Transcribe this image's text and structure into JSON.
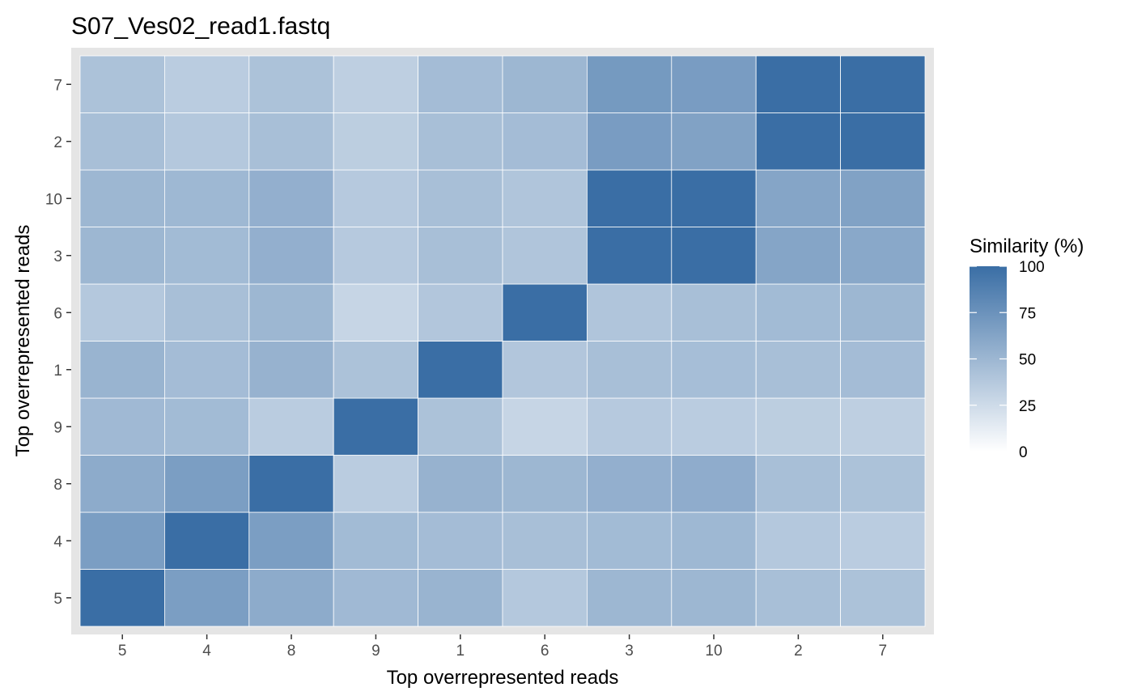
{
  "chart_data": {
    "type": "heatmap",
    "title": "S07_Ves02_read1.fastq",
    "xlabel": "Top overrepresented reads",
    "ylabel": "Top overrepresented reads",
    "x_categories": [
      "5",
      "4",
      "8",
      "9",
      "1",
      "6",
      "3",
      "10",
      "2",
      "7"
    ],
    "y_categories": [
      "5",
      "4",
      "8",
      "9",
      "1",
      "6",
      "3",
      "10",
      "2",
      "7"
    ],
    "values": [
      [
        100,
        67,
        58,
        48,
        52,
        38,
        50,
        50,
        44,
        42
      ],
      [
        67,
        100,
        67,
        47,
        46,
        44,
        47,
        49,
        38,
        35
      ],
      [
        58,
        67,
        100,
        35,
        53,
        50,
        55,
        57,
        44,
        42
      ],
      [
        48,
        47,
        35,
        100,
        42,
        29,
        37,
        35,
        34,
        33
      ],
      [
        52,
        46,
        53,
        42,
        100,
        39,
        44,
        45,
        44,
        46
      ],
      [
        38,
        44,
        50,
        29,
        39,
        100,
        40,
        44,
        47,
        50
      ],
      [
        50,
        47,
        55,
        37,
        44,
        40,
        100,
        100,
        62,
        60
      ],
      [
        50,
        49,
        55,
        37,
        44,
        40,
        100,
        100,
        62,
        64
      ],
      [
        44,
        38,
        44,
        34,
        44,
        46,
        68,
        64,
        100,
        100
      ],
      [
        42,
        35,
        42,
        33,
        46,
        50,
        70,
        68,
        100,
        100
      ]
    ],
    "color_low": "#ffffff",
    "color_high": "#3a6ea5",
    "panel_background": "#e5e5e5",
    "legend": {
      "title": "Similarity (%)",
      "labels": [
        "100",
        "75",
        "50",
        "25",
        "0"
      ],
      "values": [
        100,
        75,
        50,
        25,
        0
      ],
      "position": "right"
    },
    "zlim": [
      0,
      100
    ]
  }
}
